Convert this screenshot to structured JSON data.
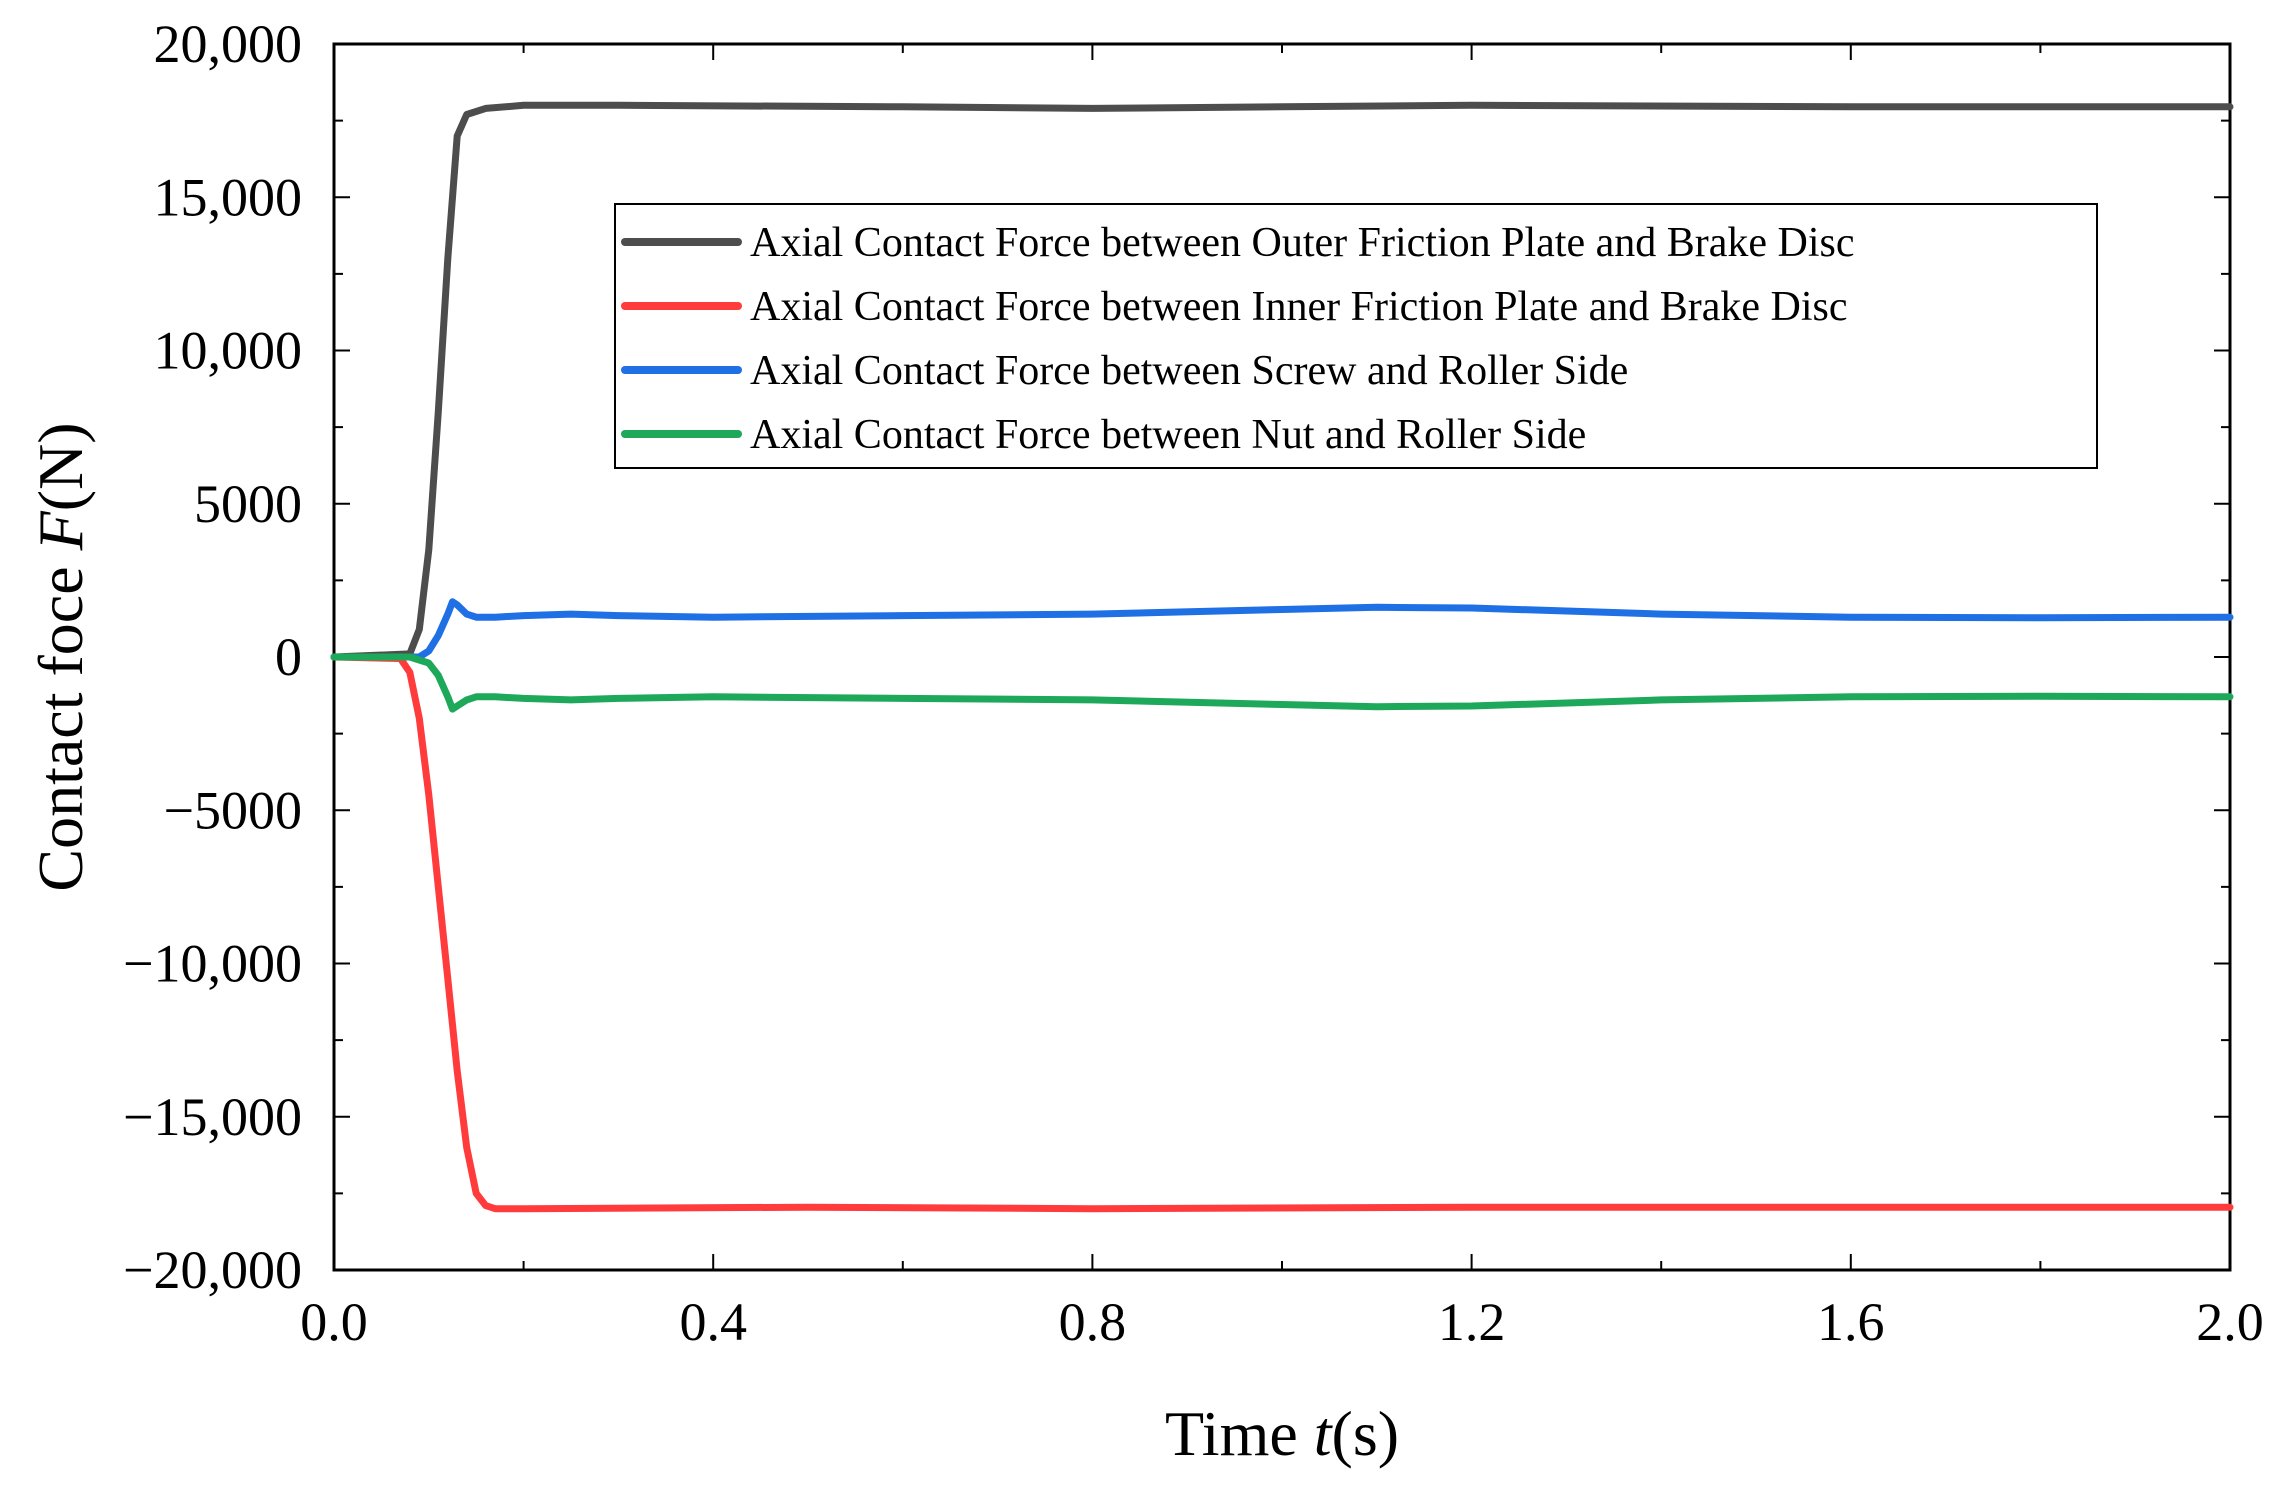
{
  "chart_data": {
    "type": "line",
    "title": "",
    "xlabel_prefix": "Time ",
    "xlabel_var": "t",
    "xlabel_unit": "(s)",
    "ylabel_prefix": "Contact foce ",
    "ylabel_var": "F",
    "ylabel_unit": "(N)",
    "xlim": [
      0,
      2.0
    ],
    "ylim": [
      -20000,
      20000
    ],
    "x_ticks": [
      0.0,
      0.4,
      0.8,
      1.2,
      1.6,
      2.0
    ],
    "x_tick_labels": [
      "0.0",
      "0.4",
      "0.8",
      "1.2",
      "1.6",
      "2.0"
    ],
    "y_ticks": [
      20000,
      15000,
      10000,
      5000,
      0,
      -5000,
      -10000,
      -15000,
      -20000
    ],
    "y_tick_labels": [
      "20,000",
      "15,000",
      "10,000",
      "5000",
      "0",
      "−5000",
      "−10,000",
      "−15,000",
      "−20,000"
    ],
    "grid": false,
    "legend_position": "upper-center",
    "series": [
      {
        "name": "Axial Contact Force between Outer Friction Plate and Brake Disc",
        "color": "#4d4d4d",
        "x": [
          0,
          0.08,
          0.09,
          0.1,
          0.11,
          0.12,
          0.13,
          0.14,
          0.16,
          0.2,
          0.3,
          0.6,
          0.8,
          1.0,
          1.2,
          1.6,
          2.0
        ],
        "y": [
          0,
          100,
          900,
          3500,
          8000,
          13000,
          17000,
          17700,
          17900,
          18000,
          18000,
          17950,
          17900,
          17950,
          18000,
          17950,
          17950
        ]
      },
      {
        "name": "Axial Contact Force between Inner Friction Plate and Brake Disc",
        "color": "#ff3b3b",
        "x": [
          0,
          0.07,
          0.08,
          0.09,
          0.1,
          0.11,
          0.12,
          0.13,
          0.14,
          0.15,
          0.16,
          0.17,
          0.2,
          0.5,
          0.8,
          1.2,
          1.6,
          2.0
        ],
        "y": [
          0,
          -50,
          -500,
          -2000,
          -4500,
          -7500,
          -10500,
          -13500,
          -16000,
          -17500,
          -17900,
          -18000,
          -18000,
          -17950,
          -18000,
          -17950,
          -17950,
          -17950
        ]
      },
      {
        "name": "Axial Contact Force between Screw and Roller Side",
        "color": "#1f6fe5",
        "x": [
          0,
          0.09,
          0.1,
          0.11,
          0.12,
          0.125,
          0.13,
          0.14,
          0.15,
          0.17,
          0.2,
          0.25,
          0.3,
          0.4,
          0.6,
          0.8,
          1.0,
          1.1,
          1.2,
          1.3,
          1.4,
          1.6,
          1.8,
          2.0
        ],
        "y": [
          0,
          0,
          200,
          700,
          1400,
          1800,
          1700,
          1400,
          1300,
          1300,
          1350,
          1400,
          1350,
          1300,
          1350,
          1400,
          1550,
          1620,
          1600,
          1500,
          1400,
          1300,
          1280,
          1300
        ]
      },
      {
        "name": "Axial Contact Force between Nut and Roller Side",
        "color": "#1ea85a",
        "x": [
          0,
          0.08,
          0.1,
          0.11,
          0.12,
          0.125,
          0.13,
          0.14,
          0.15,
          0.17,
          0.2,
          0.25,
          0.3,
          0.4,
          0.6,
          0.8,
          1.0,
          1.1,
          1.2,
          1.3,
          1.4,
          1.6,
          1.8,
          2.0
        ],
        "y": [
          0,
          0,
          -200,
          -600,
          -1300,
          -1700,
          -1600,
          -1400,
          -1300,
          -1300,
          -1350,
          -1400,
          -1350,
          -1300,
          -1350,
          -1400,
          -1550,
          -1620,
          -1600,
          -1500,
          -1400,
          -1300,
          -1280,
          -1300
        ]
      }
    ]
  }
}
